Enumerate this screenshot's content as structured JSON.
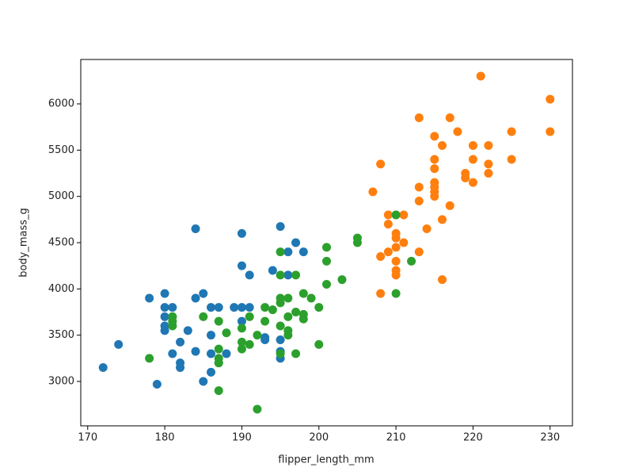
{
  "chart_data": {
    "type": "scatter",
    "x_label": "flipper_length_mm",
    "y_label": "body_mass_g",
    "xlim": [
      169.1,
      232.9
    ],
    "ylim": [
      2520,
      6480
    ],
    "xticks": [
      170,
      180,
      190,
      200,
      210,
      220,
      230
    ],
    "yticks": [
      3000,
      3500,
      4000,
      4500,
      5000,
      5500,
      6000
    ],
    "series": [
      {
        "color": "#1f77b4",
        "x": [
          172,
          174,
          178,
          179,
          180,
          180,
          180,
          180,
          180,
          181,
          181,
          181,
          182,
          182,
          182,
          183,
          184,
          184,
          184,
          185,
          185,
          186,
          186,
          186,
          186,
          187,
          187,
          188,
          189,
          190,
          190,
          190,
          190,
          191,
          191,
          193,
          193,
          194,
          195,
          195,
          195,
          195,
          196,
          196,
          197,
          198
        ],
        "y": [
          3150,
          3400,
          3900,
          2970,
          3950,
          3800,
          3700,
          3600,
          3550,
          3800,
          3700,
          3300,
          3200,
          3150,
          3425,
          3550,
          4650,
          3900,
          3325,
          3950,
          3000,
          3500,
          3800,
          3300,
          3100,
          3800,
          3200,
          3300,
          3800,
          4600,
          4250,
          3650,
          3800,
          4150,
          3800,
          3475,
          3450,
          4200,
          4675,
          3450,
          3250,
          3325,
          4400,
          4150,
          4500,
          4400
        ]
      },
      {
        "color": "#ff7f0e",
        "x": [
          207,
          208,
          208,
          208,
          209,
          209,
          209,
          210,
          210,
          210,
          210,
          210,
          210,
          210,
          211,
          211,
          213,
          213,
          213,
          213,
          214,
          215,
          215,
          215,
          215,
          215,
          215,
          215,
          216,
          216,
          216,
          217,
          217,
          218,
          219,
          219,
          220,
          220,
          220,
          221,
          222,
          222,
          222,
          225,
          225,
          230,
          230
        ],
        "y": [
          5050,
          5350,
          4350,
          3950,
          4800,
          4700,
          4400,
          4800,
          4600,
          4550,
          4450,
          4300,
          4200,
          4150,
          4800,
          4500,
          5850,
          5100,
          4950,
          4400,
          4650,
          5650,
          5400,
          5300,
          5150,
          5050,
          5000,
          5100,
          5550,
          4750,
          4100,
          5850,
          4900,
          5700,
          5250,
          5200,
          5550,
          5400,
          5150,
          6300,
          5550,
          5350,
          5250,
          5700,
          5400,
          6050,
          5700
        ]
      },
      {
        "color": "#2ca02c",
        "x": [
          178,
          181,
          181,
          181,
          185,
          187,
          187,
          187,
          187,
          187,
          188,
          190,
          190,
          190,
          191,
          191,
          192,
          192,
          193,
          193,
          194,
          195,
          195,
          195,
          195,
          195,
          195,
          196,
          196,
          196,
          196,
          197,
          197,
          197,
          198,
          198,
          198,
          199,
          200,
          200,
          201,
          201,
          201,
          203,
          205,
          205,
          210,
          210,
          212
        ],
        "y": [
          3250,
          3700,
          3650,
          3600,
          3700,
          3650,
          3350,
          3250,
          3200,
          2900,
          3525,
          3350,
          3425,
          3575,
          3700,
          3400,
          3500,
          2700,
          3800,
          3650,
          3775,
          4400,
          4150,
          3900,
          3850,
          3600,
          3300,
          3900,
          3700,
          3550,
          3500,
          4150,
          3750,
          3300,
          3950,
          3725,
          3675,
          3900,
          3800,
          3400,
          4450,
          4300,
          4050,
          4100,
          4550,
          4500,
          4800,
          3950,
          4300
        ]
      }
    ]
  }
}
